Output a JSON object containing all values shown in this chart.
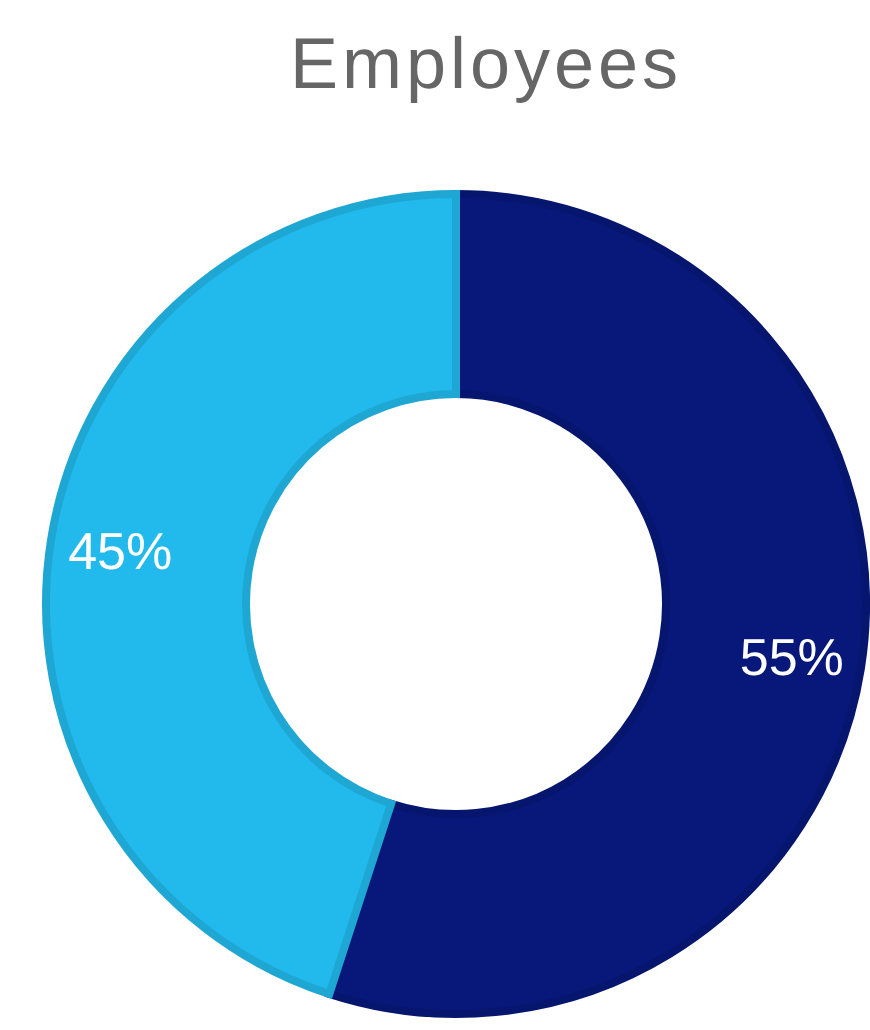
{
  "chart_data": {
    "type": "donut",
    "title": "Employees",
    "categories": [
      null,
      null
    ],
    "values": [
      55,
      45
    ],
    "colors": [
      "#07187a",
      "#22baec"
    ],
    "value_labels": [
      "55%",
      "45%"
    ]
  }
}
